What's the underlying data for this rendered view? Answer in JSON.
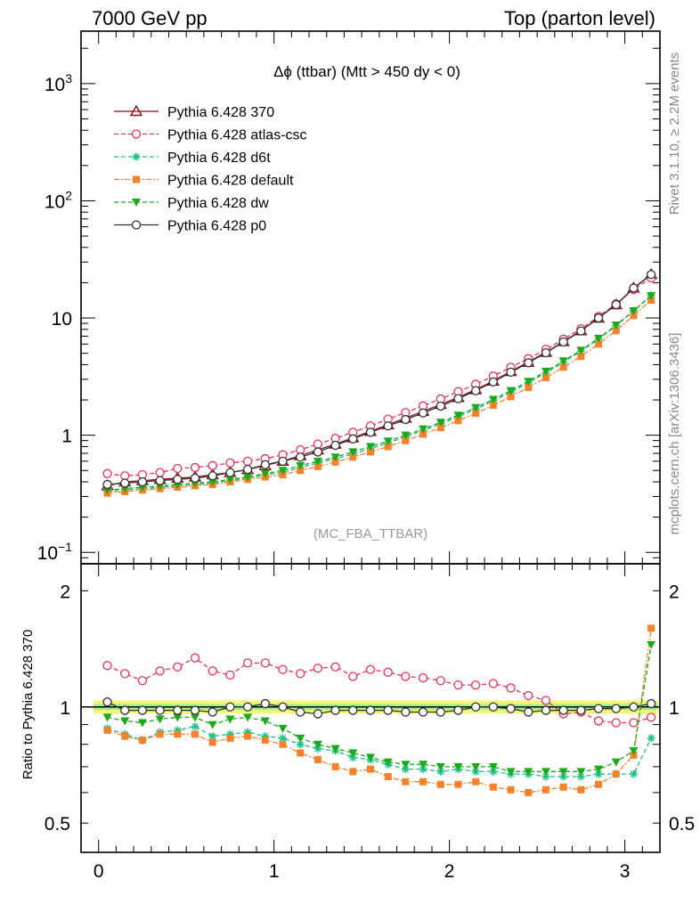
{
  "header": {
    "left": "7000 GeV pp",
    "right": "Top (parton level)"
  },
  "side": {
    "rivet": "Rivet 3.1.10, ≥ 2.2M events",
    "mcplots": "mcplots.cern.ch [arXiv:1306.3436]"
  },
  "watermark": "(MC_FBA_TTBAR)",
  "chart_data": [
    {
      "type": "line",
      "title": "Δϕ (ttbar) (Mtt > 450 dy < 0)",
      "yscale": "log",
      "xlim": [
        -0.1,
        3.2
      ],
      "ylim": [
        0.08,
        2800
      ],
      "x_ticks": [
        0,
        1,
        2,
        3
      ],
      "y_ticks": [
        {
          "v": 0.1,
          "b": "10",
          "e": "−1"
        },
        {
          "v": 1,
          "b": "1",
          "e": ""
        },
        {
          "v": 10,
          "b": "10",
          "e": ""
        },
        {
          "v": 100,
          "b": "10",
          "e": "2"
        },
        {
          "v": 1000,
          "b": "10",
          "e": "3"
        }
      ],
      "legend_position": "top-left",
      "x": [
        0.05,
        0.15,
        0.25,
        0.35,
        0.45,
        0.55,
        0.65,
        0.75,
        0.85,
        0.95,
        1.05,
        1.15,
        1.25,
        1.35,
        1.45,
        1.55,
        1.65,
        1.75,
        1.85,
        1.95,
        2.05,
        2.15,
        2.25,
        2.35,
        2.45,
        2.55,
        2.65,
        2.75,
        2.85,
        2.95,
        3.05,
        3.15
      ],
      "series": [
        {
          "name": "Pythia 6.428 370",
          "color": "#8b0f1a",
          "dash": "",
          "marker": "triangle-open",
          "values": [
            0.37,
            0.4,
            0.41,
            0.42,
            0.43,
            0.44,
            0.46,
            0.48,
            0.51,
            0.55,
            0.6,
            0.67,
            0.75,
            0.84,
            0.95,
            1.08,
            1.23,
            1.4,
            1.6,
            1.83,
            2.1,
            2.45,
            2.9,
            3.5,
            4.2,
            5.1,
            6.3,
            7.8,
            10.0,
            13.0,
            18.0,
            23.5
          ]
        },
        {
          "name": "Pythia 6.428 atlas-csc",
          "color": "#e8305a",
          "dash": "5,3",
          "marker": "circle-open",
          "values": [
            0.47,
            0.45,
            0.46,
            0.48,
            0.52,
            0.53,
            0.55,
            0.58,
            0.6,
            0.63,
            0.68,
            0.75,
            0.84,
            0.94,
            1.06,
            1.2,
            1.37,
            1.56,
            1.78,
            2.04,
            2.35,
            2.72,
            3.2,
            3.8,
            4.5,
            5.4,
            6.6,
            8.1,
            10.3,
            13.2,
            17.5,
            22.0
          ]
        },
        {
          "name": "Pythia 6.428 d6t",
          "color": "#19c089",
          "dash": "5,3",
          "marker": "star",
          "values": [
            0.33,
            0.34,
            0.35,
            0.36,
            0.37,
            0.38,
            0.39,
            0.41,
            0.43,
            0.46,
            0.48,
            0.53,
            0.58,
            0.63,
            0.69,
            0.77,
            0.86,
            0.97,
            1.1,
            1.25,
            1.44,
            1.67,
            1.96,
            2.33,
            2.8,
            3.4,
            4.2,
            5.2,
            6.6,
            8.6,
            11.5,
            15.6
          ]
        },
        {
          "name": "Pythia 6.428 default",
          "color": "#f5822b",
          "dash": "6,2,2,2",
          "marker": "square",
          "values": [
            0.32,
            0.33,
            0.34,
            0.35,
            0.36,
            0.37,
            0.38,
            0.4,
            0.42,
            0.44,
            0.46,
            0.5,
            0.54,
            0.59,
            0.65,
            0.72,
            0.8,
            0.9,
            1.02,
            1.16,
            1.33,
            1.54,
            1.8,
            2.13,
            2.55,
            3.1,
            3.8,
            4.7,
            6.0,
            7.8,
            10.5,
            14.2
          ]
        },
        {
          "name": "Pythia 6.428 dw",
          "color": "#1aaa1a",
          "dash": "5,3",
          "marker": "triangle-down",
          "values": [
            0.34,
            0.35,
            0.36,
            0.37,
            0.38,
            0.39,
            0.4,
            0.42,
            0.44,
            0.47,
            0.5,
            0.55,
            0.6,
            0.65,
            0.72,
            0.8,
            0.89,
            1.0,
            1.13,
            1.29,
            1.48,
            1.72,
            2.02,
            2.4,
            2.88,
            3.5,
            4.3,
            5.3,
            6.7,
            8.7,
            11.5,
            15.5
          ]
        },
        {
          "name": "Pythia 6.428 p0",
          "color": "#333333",
          "dash": "",
          "marker": "circle-open",
          "values": [
            0.38,
            0.39,
            0.4,
            0.41,
            0.42,
            0.43,
            0.45,
            0.48,
            0.51,
            0.56,
            0.6,
            0.65,
            0.72,
            0.82,
            0.93,
            1.06,
            1.2,
            1.36,
            1.55,
            1.77,
            2.05,
            2.4,
            2.85,
            3.45,
            4.15,
            5.05,
            6.25,
            7.75,
            10.0,
            13.0,
            18.0,
            23.5
          ]
        }
      ]
    },
    {
      "type": "line",
      "ylabel": "Ratio to Pythia 6.428 370",
      "yscale": "log",
      "xlim": [
        -0.1,
        3.2
      ],
      "ylim": [
        0.42,
        2.35
      ],
      "x_ticks": [
        0,
        1,
        2,
        3
      ],
      "y_ticks": [
        {
          "v": 0.5,
          "label": "0.5"
        },
        {
          "v": 1,
          "label": "1"
        },
        {
          "v": 2,
          "label": "2"
        }
      ],
      "reference": 1,
      "band": {
        "lo": 0.96,
        "hi": 1.04,
        "color": "#f6f67a",
        "inner_color": "#a6ef8e"
      },
      "x": [
        0.05,
        0.15,
        0.25,
        0.35,
        0.45,
        0.55,
        0.65,
        0.75,
        0.85,
        0.95,
        1.05,
        1.15,
        1.25,
        1.35,
        1.45,
        1.55,
        1.65,
        1.75,
        1.85,
        1.95,
        2.05,
        2.15,
        2.25,
        2.35,
        2.45,
        2.55,
        2.65,
        2.75,
        2.85,
        2.95,
        3.05,
        3.15
      ],
      "series": [
        {
          "name": "Pythia 6.428 atlas-csc",
          "color": "#e8305a",
          "dash": "5,3",
          "marker": "circle-open",
          "values": [
            1.28,
            1.22,
            1.17,
            1.24,
            1.27,
            1.34,
            1.24,
            1.21,
            1.3,
            1.3,
            1.25,
            1.22,
            1.26,
            1.27,
            1.2,
            1.25,
            1.23,
            1.2,
            1.19,
            1.17,
            1.14,
            1.14,
            1.15,
            1.12,
            1.07,
            1.04,
            0.96,
            0.97,
            0.92,
            0.91,
            0.91,
            0.94
          ]
        },
        {
          "name": "Pythia 6.428 d6t",
          "color": "#19c089",
          "dash": "5,3",
          "marker": "star",
          "values": [
            0.88,
            0.85,
            0.82,
            0.86,
            0.87,
            0.89,
            0.84,
            0.85,
            0.86,
            0.84,
            0.83,
            0.8,
            0.78,
            0.77,
            0.74,
            0.73,
            0.71,
            0.69,
            0.69,
            0.68,
            0.69,
            0.68,
            0.68,
            0.67,
            0.67,
            0.66,
            0.66,
            0.66,
            0.67,
            0.67,
            0.67,
            0.83
          ]
        },
        {
          "name": "Pythia 6.428 default",
          "color": "#f5822b",
          "dash": "6,2,2,2",
          "marker": "square",
          "values": [
            0.87,
            0.84,
            0.82,
            0.85,
            0.85,
            0.85,
            0.81,
            0.83,
            0.84,
            0.82,
            0.8,
            0.76,
            0.73,
            0.7,
            0.68,
            0.69,
            0.66,
            0.64,
            0.64,
            0.63,
            0.63,
            0.64,
            0.62,
            0.61,
            0.6,
            0.61,
            0.62,
            0.61,
            0.63,
            0.67,
            0.75,
            1.6
          ]
        },
        {
          "name": "Pythia 6.428 dw",
          "color": "#1aaa1a",
          "dash": "5,3",
          "marker": "triangle-down",
          "values": [
            0.94,
            0.92,
            0.91,
            0.93,
            0.94,
            0.94,
            0.9,
            0.93,
            0.94,
            0.92,
            0.88,
            0.83,
            0.8,
            0.78,
            0.76,
            0.74,
            0.72,
            0.71,
            0.71,
            0.7,
            0.7,
            0.7,
            0.7,
            0.68,
            0.68,
            0.68,
            0.68,
            0.68,
            0.69,
            0.72,
            0.77,
            1.45
          ]
        },
        {
          "name": "Pythia 6.428 p0",
          "color": "#333333",
          "dash": "",
          "marker": "circle-open",
          "values": [
            1.03,
            0.98,
            0.98,
            0.98,
            0.98,
            0.98,
            0.97,
            1.0,
            1.0,
            1.02,
            1.0,
            0.97,
            0.96,
            0.98,
            0.98,
            0.98,
            0.98,
            0.97,
            0.97,
            0.97,
            0.98,
            1.0,
            1.0,
            0.99,
            0.97,
            0.98,
            0.98,
            0.98,
            0.99,
            0.99,
            1.0,
            1.02
          ]
        }
      ]
    }
  ]
}
